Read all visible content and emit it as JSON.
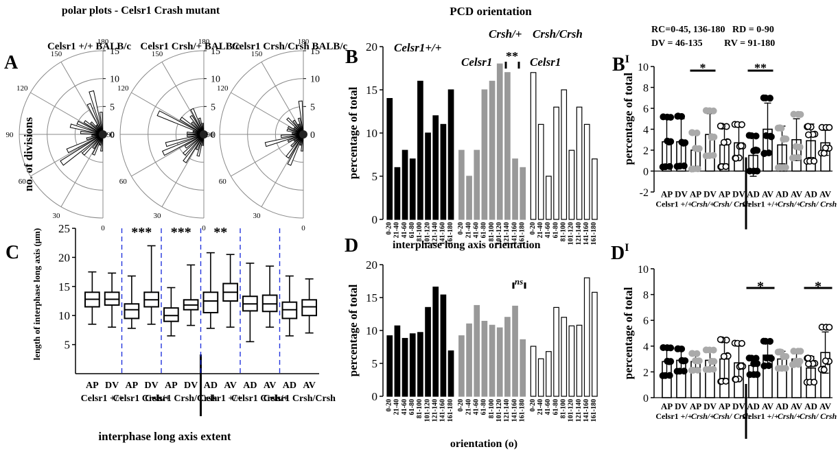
{
  "figure": {
    "title_polar": "polar plots - Celsr1 Crash mutant",
    "title_pcd": "PCD orientation",
    "panel_letters": {
      "A": "A",
      "B": "B",
      "B1": "B",
      "C": "C",
      "D": "D",
      "D1": "D"
    }
  },
  "chart_data": [
    {
      "id": "A",
      "type": "polar-histogram",
      "ylabel": "no. of divisions",
      "angle_ticks": [
        "0",
        "30",
        "60",
        "90",
        "120",
        "150",
        "180"
      ],
      "radial_ticks": [
        "0",
        "5",
        "10",
        "15"
      ],
      "rlim": [
        0,
        15
      ],
      "plots": [
        {
          "label": "Celsr1 +/+ BALB/c",
          "counts": [
            3,
            2,
            4,
            3,
            5,
            9,
            7,
            3,
            2,
            4,
            6,
            5,
            4,
            3,
            2,
            6,
            8,
            4
          ]
        },
        {
          "label": "Celsr1 Crsh/+ BALB/c",
          "counts": [
            2,
            4,
            3,
            6,
            5,
            4,
            8,
            7,
            3,
            3,
            2,
            9,
            5,
            3,
            4,
            5,
            3,
            2
          ]
        },
        {
          "label": "Celsr1 Crsh/Crsh BALB/c",
          "counts": [
            3,
            2,
            6,
            5,
            3,
            2,
            3,
            7,
            4,
            2,
            3,
            3,
            2,
            4,
            3,
            2,
            3,
            6
          ]
        }
      ]
    },
    {
      "id": "B",
      "type": "bar",
      "ylabel": "percentage of total",
      "ylim": [
        0,
        20
      ],
      "yticks": [
        "0",
        "5",
        "10",
        "15",
        "20"
      ],
      "categories": [
        "0-20",
        "21-40",
        "41-60",
        "61-80",
        "81-100",
        "101-120",
        "121-140",
        "141-160",
        "161-180"
      ],
      "series": [
        {
          "name": "Celsr1+/+",
          "color": "#000000",
          "values": [
            14,
            6,
            8,
            7,
            16,
            10,
            12,
            11,
            15
          ]
        },
        {
          "name": "Celsr1 Crsh/+",
          "color": "#999999",
          "values": [
            8,
            5,
            8,
            15,
            16,
            18,
            17,
            7,
            6
          ]
        },
        {
          "name": "Celsr1 Crsh/Crsh",
          "color": "#ffffff",
          "values": [
            17,
            11,
            5,
            13,
            15,
            8,
            13,
            11,
            7
          ]
        }
      ],
      "annotation": "**"
    },
    {
      "id": "B1",
      "type": "bar-scatter",
      "legend_lines": [
        "RC=0-45, 136-180   RD = 0-90",
        "DV = 46-135         RV = 91-180"
      ],
      "ylabel": "percentage of total",
      "ylim": [
        -2,
        10
      ],
      "yticks": [
        "-2",
        "0",
        "2",
        "4",
        "6",
        "8",
        "10"
      ],
      "categories": [
        "AP",
        "DV",
        "AP",
        "DV",
        "AP",
        "DV",
        "AD",
        "AV",
        "AD",
        "AV",
        "AD",
        "AV"
      ],
      "group_labels": [
        "Celsr1 +/+",
        "Crsh/+",
        "Crsh/ Crsh",
        "Celsr1 +/+",
        "Crsh/+",
        "Crsh/ Crsh"
      ],
      "values": [
        2.8,
        2.8,
        2.0,
        3.5,
        2.5,
        2.7,
        1.5,
        4.0,
        2.5,
        3.0,
        2.9,
        2.7
      ],
      "errors": [
        2.2,
        2.2,
        1.6,
        2.0,
        1.8,
        1.5,
        2.0,
        2.5,
        1.8,
        2.0,
        1.6,
        1.2
      ],
      "annotations": [
        "*",
        "**"
      ]
    },
    {
      "id": "C",
      "type": "boxplot",
      "xlabel": "interphase long axis extent",
      "ylabel": "length of interphase long axis (μm)",
      "ylim": [
        0,
        25
      ],
      "yticks": [
        "5",
        "10",
        "15",
        "20",
        "25"
      ],
      "categories": [
        "AP",
        "DV",
        "AP",
        "DV",
        "AP",
        "DV",
        "AD",
        "AV",
        "AD",
        "AV",
        "AD",
        "AV"
      ],
      "group_labels": [
        "Celsr1 +/+",
        "Celsr1 Crsh/+",
        "Celsr1 Crsh/Crsh",
        "Celsr1 +/+",
        "Celsr1 Crsh/+",
        "Celsr1 Crsh/Crsh"
      ],
      "boxes": [
        [
          8.5,
          11.5,
          12.8,
          14.0,
          17.5
        ],
        [
          8.0,
          11.8,
          12.8,
          14.0,
          17.3
        ],
        [
          7.8,
          9.5,
          11.0,
          12.0,
          16.8
        ],
        [
          8.5,
          11.5,
          12.7,
          14.0,
          22.0
        ],
        [
          6.5,
          9.0,
          10.0,
          11.3,
          14.8
        ],
        [
          8.3,
          11.0,
          11.8,
          12.7,
          18.7
        ],
        [
          7.8,
          10.5,
          12.5,
          14.0,
          20.8
        ],
        [
          8.0,
          12.5,
          14.0,
          15.5,
          20.5
        ],
        [
          5.5,
          10.8,
          12.0,
          13.3,
          19.0
        ],
        [
          8.0,
          10.7,
          12.0,
          13.5,
          18.5
        ],
        [
          6.5,
          9.5,
          11.0,
          12.3,
          16.8
        ],
        [
          7.0,
          10.0,
          11.5,
          12.7,
          16.3
        ]
      ],
      "annotations": [
        "***",
        "***",
        "**"
      ]
    },
    {
      "id": "D",
      "type": "bar",
      "title": "interphase long axis orientation",
      "xlabel": "orientation (o)",
      "ylabel": "percentage of total",
      "ylim": [
        0,
        20
      ],
      "yticks": [
        "0",
        "5",
        "10",
        "15",
        "20"
      ],
      "categories": [
        "0-20",
        "21-40",
        "41-60",
        "61-80",
        "81-100",
        "101-120",
        "121-140",
        "141-160",
        "161-180"
      ],
      "series": [
        {
          "name": "Celsr1+/+",
          "color": "#000000",
          "values": [
            9.2,
            10.7,
            8.8,
            9.5,
            9.7,
            13.5,
            16.6,
            15.4,
            6.9
          ]
        },
        {
          "name": "Celsr1 Crsh/+",
          "color": "#999999",
          "values": [
            9.2,
            11.0,
            13.8,
            11.4,
            10.8,
            10.4,
            12.0,
            13.7,
            8.6
          ]
        },
        {
          "name": "Celsr1 Crsh/Crsh",
          "color": "#ffffff",
          "values": [
            7.6,
            5.7,
            6.8,
            13.5,
            12.0,
            10.7,
            10.8,
            18.0,
            15.8
          ]
        }
      ],
      "annotation": "ns"
    },
    {
      "id": "D1",
      "type": "bar-scatter",
      "ylabel": "percentage of total",
      "ylim": [
        0,
        10
      ],
      "yticks": [
        "0",
        "2",
        "4",
        "6",
        "8",
        "10"
      ],
      "categories": [
        "AP",
        "DV",
        "AP",
        "DV",
        "AP",
        "DV",
        "AD",
        "AV",
        "AD",
        "AV",
        "AD",
        "AV"
      ],
      "group_labels": [
        "Celsr1 +/+",
        "Crsh/+",
        "Crsh/ Crsh",
        "Celsr1 +/+",
        "Crsh/+",
        "Crsh/ Crsh"
      ],
      "values": [
        2.8,
        2.9,
        2.8,
        2.9,
        3.0,
        2.7,
        2.5,
        3.3,
        3.0,
        3.0,
        2.3,
        3.5
      ],
      "errors": [
        1.0,
        0.8,
        0.6,
        0.7,
        1.5,
        1.3,
        0.6,
        0.9,
        0.6,
        0.5,
        0.9,
        1.6
      ],
      "annotations": [
        "*",
        "*"
      ]
    }
  ]
}
